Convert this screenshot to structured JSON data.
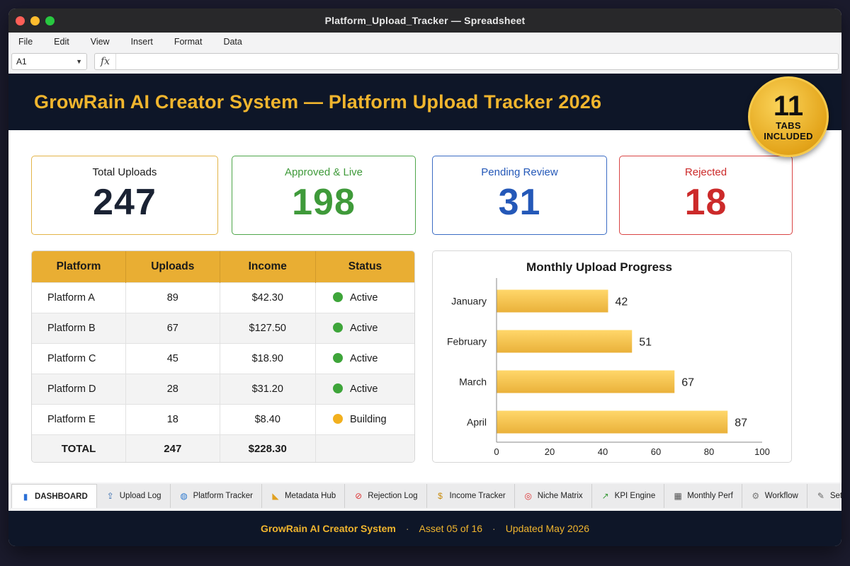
{
  "window": {
    "title": "Platform_Upload_Tracker — Spreadsheet"
  },
  "menu": [
    "File",
    "Edit",
    "View",
    "Insert",
    "Format",
    "Data"
  ],
  "formula_bar": {
    "cell_ref": "A1",
    "fx": "fx",
    "value": ""
  },
  "banner": {
    "title": "GrowRain AI Creator System — Platform Upload Tracker 2026"
  },
  "badge": {
    "number": "11",
    "line1": "TABS",
    "line2": "INCLUDED"
  },
  "kpis": [
    {
      "label": "Total Uploads",
      "value": "247",
      "color": "#1a2233",
      "border": "#e3b448"
    },
    {
      "label": "Approved & Live",
      "value": "198",
      "color": "#3f9a3a",
      "border": "#4ea64a"
    },
    {
      "label": "Pending Review",
      "value": "31",
      "color": "#2458b8",
      "border": "#3b6cc4"
    },
    {
      "label": "Rejected",
      "value": "18",
      "color": "#cc2a2a",
      "border": "#d94444"
    }
  ],
  "table": {
    "headers": [
      "Platform",
      "Uploads",
      "Income",
      "Status"
    ],
    "rows": [
      {
        "platform": "Platform A",
        "uploads": "89",
        "income": "$42.30",
        "status": "Active",
        "status_color": "#3ea53a"
      },
      {
        "platform": "Platform B",
        "uploads": "67",
        "income": "$127.50",
        "status": "Active",
        "status_color": "#3ea53a"
      },
      {
        "platform": "Platform C",
        "uploads": "45",
        "income": "$18.90",
        "status": "Active",
        "status_color": "#3ea53a"
      },
      {
        "platform": "Platform D",
        "uploads": "28",
        "income": "$31.20",
        "status": "Active",
        "status_color": "#3ea53a"
      },
      {
        "platform": "Platform E",
        "uploads": "18",
        "income": "$8.40",
        "status": "Building",
        "status_color": "#f2b01e"
      }
    ],
    "total": {
      "label": "TOTAL",
      "uploads": "247",
      "income": "$228.30"
    }
  },
  "chart_data": {
    "type": "bar",
    "orientation": "horizontal",
    "title": "Monthly Upload Progress",
    "categories": [
      "January",
      "February",
      "March",
      "April"
    ],
    "values": [
      42,
      51,
      67,
      87
    ],
    "xlim": [
      0,
      100
    ],
    "xticks": [
      0,
      20,
      40,
      60,
      80,
      100
    ],
    "bar_color": "#f6c344",
    "grid": false
  },
  "tabs": [
    {
      "label": "DASHBOARD",
      "icon": "bar-chart-icon",
      "glyph": "▮",
      "active": true
    },
    {
      "label": "Upload Log",
      "icon": "upload-icon",
      "glyph": "⇪"
    },
    {
      "label": "Platform Tracker",
      "icon": "globe-icon",
      "glyph": "◍"
    },
    {
      "label": "Metadata Hub",
      "icon": "tag-icon",
      "glyph": "◣"
    },
    {
      "label": "Rejection Log",
      "icon": "prohibited-icon",
      "glyph": "⊘"
    },
    {
      "label": "Income Tracker",
      "icon": "money-bag-icon",
      "glyph": "$"
    },
    {
      "label": "Niche Matrix",
      "icon": "target-icon",
      "glyph": "◎"
    },
    {
      "label": "KPI Engine",
      "icon": "line-chart-icon",
      "glyph": "↗"
    },
    {
      "label": "Monthly Perf",
      "icon": "calendar-icon",
      "glyph": "▦"
    },
    {
      "label": "Workflow",
      "icon": "gear-icon",
      "glyph": "⚙"
    },
    {
      "label": "Settings",
      "icon": "wrench-icon",
      "glyph": "✎"
    }
  ],
  "footer": {
    "brand": "GrowRain AI Creator System",
    "asset": "Asset 05 of 16",
    "updated": "Updated May 2026",
    "sep": "·"
  }
}
